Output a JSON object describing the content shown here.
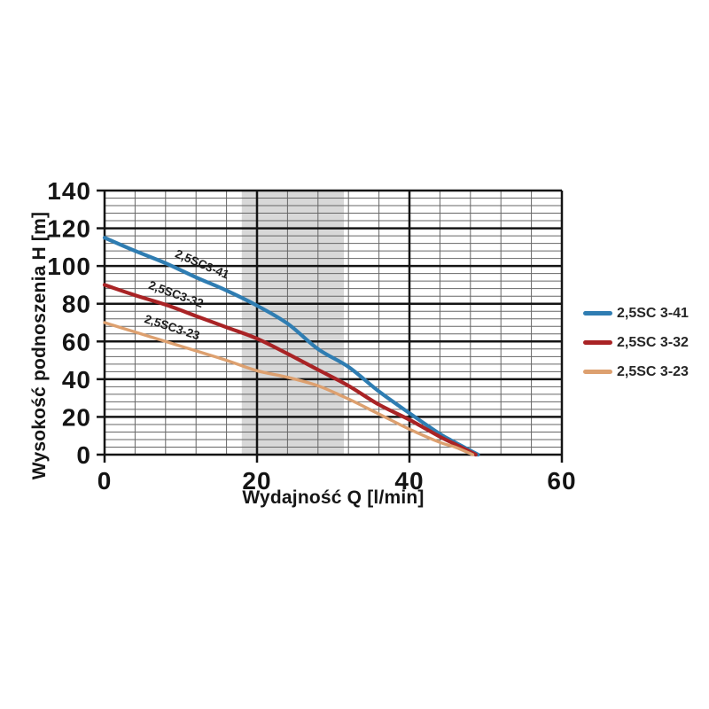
{
  "page": {
    "background": "#ffffff"
  },
  "chart_data": {
    "type": "line",
    "title": "",
    "xlabel": "Wydajność Q [l/min]",
    "ylabel": "Wysokość podnoszenia H [m]",
    "xlim": [
      0,
      60
    ],
    "ylim": [
      0,
      140
    ],
    "x_major_ticks": [
      0,
      20,
      40,
      60
    ],
    "y_major_ticks": [
      0,
      20,
      40,
      60,
      80,
      100,
      120,
      140
    ],
    "x_minor_step": 4,
    "y_minor_step": 4,
    "grid": true,
    "legend_position": "right",
    "operating_band": {
      "from": 18,
      "to": 31.4,
      "color": "#d8d8d8"
    },
    "axis_color": "#141414",
    "minor_grid_color": "#666666",
    "series": [
      {
        "name": "2,5SC 3-41",
        "color": "#2f7db2",
        "curve_label": {
          "text": "2,5SC3-41",
          "q": 12.6,
          "h": 99,
          "angle": 23
        },
        "points": [
          [
            0,
            115
          ],
          [
            4,
            108
          ],
          [
            8,
            101.5
          ],
          [
            12,
            94
          ],
          [
            16,
            87
          ],
          [
            20,
            79
          ],
          [
            24,
            69.5
          ],
          [
            28,
            56
          ],
          [
            32,
            46.5
          ],
          [
            36,
            33.5
          ],
          [
            40,
            22
          ],
          [
            44,
            11
          ],
          [
            46,
            6.5
          ],
          [
            49,
            0
          ]
        ]
      },
      {
        "name": "2,5SC 3-32",
        "color": "#a92325",
        "curve_label": {
          "text": "2,5SC3-32",
          "q": 9.2,
          "h": 83,
          "angle": 20
        },
        "points": [
          [
            0,
            90
          ],
          [
            4,
            84.5
          ],
          [
            8,
            79.5
          ],
          [
            12,
            73.5
          ],
          [
            16,
            67.5
          ],
          [
            20,
            61.5
          ],
          [
            24,
            53.5
          ],
          [
            28,
            45
          ],
          [
            32,
            36.5
          ],
          [
            36,
            26.5
          ],
          [
            40,
            18.5
          ],
          [
            44,
            9.5
          ],
          [
            46,
            5.5
          ],
          [
            48.7,
            0
          ]
        ]
      },
      {
        "name": "2,5SC 3-23",
        "color": "#dda06f",
        "curve_label": {
          "text": "2,5SC3-23",
          "q": 8.7,
          "h": 65.5,
          "angle": 18
        },
        "points": [
          [
            0,
            70
          ],
          [
            4,
            65
          ],
          [
            8,
            60
          ],
          [
            12,
            55
          ],
          [
            16,
            50
          ],
          [
            20,
            44.5
          ],
          [
            24,
            41
          ],
          [
            28,
            36.5
          ],
          [
            32,
            29.5
          ],
          [
            36,
            21.5
          ],
          [
            40,
            13.5
          ],
          [
            44,
            6.5
          ],
          [
            46,
            4
          ],
          [
            48.3,
            0
          ]
        ]
      }
    ]
  }
}
